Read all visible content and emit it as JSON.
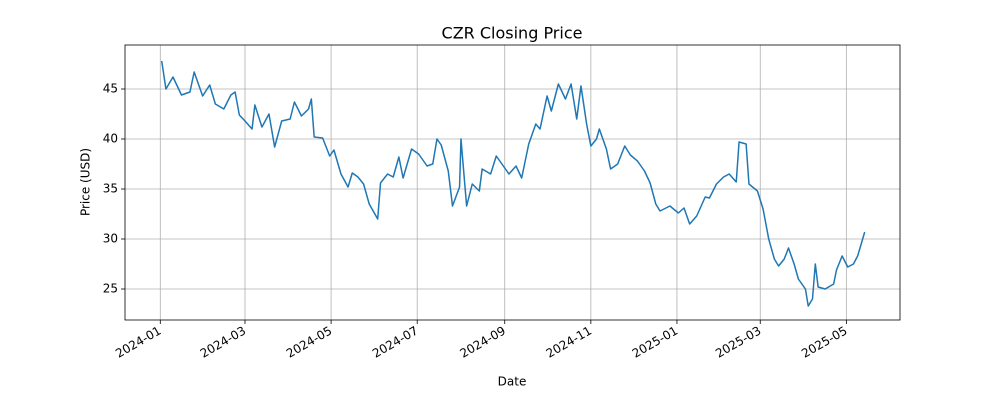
{
  "chart_data": {
    "type": "line",
    "title": "CZR Closing Price",
    "x_label": "Date",
    "y_label": "Price (USD)",
    "x": [
      "2024-01-02",
      "2024-01-05",
      "2024-01-10",
      "2024-01-16",
      "2024-01-22",
      "2024-01-25",
      "2024-01-31",
      "2024-02-05",
      "2024-02-09",
      "2024-02-15",
      "2024-02-20",
      "2024-02-23",
      "2024-02-26",
      "2024-03-01",
      "2024-03-06",
      "2024-03-08",
      "2024-03-13",
      "2024-03-18",
      "2024-03-22",
      "2024-03-27",
      "2024-04-02",
      "2024-04-05",
      "2024-04-10",
      "2024-04-15",
      "2024-04-17",
      "2024-04-19",
      "2024-04-25",
      "2024-04-30",
      "2024-05-03",
      "2024-05-08",
      "2024-05-13",
      "2024-05-16",
      "2024-05-20",
      "2024-05-24",
      "2024-05-28",
      "2024-06-03",
      "2024-06-05",
      "2024-06-10",
      "2024-06-14",
      "2024-06-18",
      "2024-06-21",
      "2024-06-27",
      "2024-07-02",
      "2024-07-08",
      "2024-07-12",
      "2024-07-15",
      "2024-07-18",
      "2024-07-23",
      "2024-07-26",
      "2024-07-31",
      "2024-08-01",
      "2024-08-05",
      "2024-08-09",
      "2024-08-14",
      "2024-08-16",
      "2024-08-22",
      "2024-08-26",
      "2024-08-30",
      "2024-09-04",
      "2024-09-09",
      "2024-09-13",
      "2024-09-18",
      "2024-09-23",
      "2024-09-26",
      "2024-10-01",
      "2024-10-04",
      "2024-10-09",
      "2024-10-14",
      "2024-10-18",
      "2024-10-22",
      "2024-10-25",
      "2024-10-29",
      "2024-11-01",
      "2024-11-05",
      "2024-11-07",
      "2024-11-12",
      "2024-11-15",
      "2024-11-20",
      "2024-11-25",
      "2024-11-29",
      "2024-12-04",
      "2024-12-09",
      "2024-12-13",
      "2024-12-17",
      "2024-12-20",
      "2024-12-27",
      "2025-01-02",
      "2025-01-06",
      "2025-01-10",
      "2025-01-15",
      "2025-01-21",
      "2025-01-24",
      "2025-01-29",
      "2025-02-03",
      "2025-02-07",
      "2025-02-12",
      "2025-02-14",
      "2025-02-19",
      "2025-02-21",
      "2025-02-27",
      "2025-03-03",
      "2025-03-07",
      "2025-03-11",
      "2025-03-14",
      "2025-03-18",
      "2025-03-21",
      "2025-03-25",
      "2025-03-28",
      "2025-04-02",
      "2025-04-04",
      "2025-04-07",
      "2025-04-09",
      "2025-04-11",
      "2025-04-16",
      "2025-04-22",
      "2025-04-24",
      "2025-04-28",
      "2025-05-02",
      "2025-05-06",
      "2025-05-09",
      "2025-05-14"
    ],
    "series": [
      {
        "name": "CZR",
        "color": "#1f77b4",
        "values": [
          47.8,
          45.0,
          46.2,
          44.4,
          44.7,
          46.7,
          44.3,
          45.4,
          43.5,
          43.0,
          44.4,
          44.7,
          42.4,
          41.8,
          41.0,
          43.4,
          41.2,
          42.5,
          39.2,
          41.8,
          42.0,
          43.7,
          42.3,
          43.0,
          44.0,
          40.2,
          40.1,
          38.3,
          38.9,
          36.5,
          35.2,
          36.6,
          36.2,
          35.5,
          33.5,
          32.0,
          35.6,
          36.5,
          36.2,
          38.2,
          36.1,
          39.0,
          38.5,
          37.3,
          37.5,
          40.0,
          39.4,
          36.8,
          33.3,
          35.2,
          40.0,
          33.3,
          35.5,
          34.8,
          37.0,
          36.5,
          38.3,
          37.5,
          36.5,
          37.3,
          36.1,
          39.5,
          41.5,
          41.0,
          44.3,
          42.8,
          45.5,
          44.0,
          45.5,
          42.0,
          45.3,
          41.5,
          39.3,
          40.0,
          41.0,
          39.0,
          37.0,
          37.5,
          39.3,
          38.4,
          37.8,
          36.8,
          35.6,
          33.5,
          32.8,
          33.3,
          32.6,
          33.1,
          31.5,
          32.3,
          34.2,
          34.1,
          35.5,
          36.2,
          36.5,
          35.7,
          39.7,
          39.5,
          35.5,
          34.8,
          33.0,
          30.0,
          28.0,
          27.3,
          28.0,
          29.1,
          27.5,
          26.0,
          25.0,
          23.3,
          24.0,
          27.5,
          25.2,
          25.0,
          25.5,
          26.9,
          28.3,
          27.2,
          27.5,
          28.3,
          30.7
        ]
      }
    ],
    "xlim": [
      "2023-12-07",
      "2025-06-08"
    ],
    "xticks": [
      "2024-01",
      "2024-03",
      "2024-05",
      "2024-07",
      "2024-09",
      "2024-11",
      "2025-01",
      "2025-03",
      "2025-05"
    ],
    "ylim": [
      21.9,
      49.4
    ],
    "yticks": [
      25,
      30,
      35,
      40,
      45
    ],
    "grid": true
  }
}
